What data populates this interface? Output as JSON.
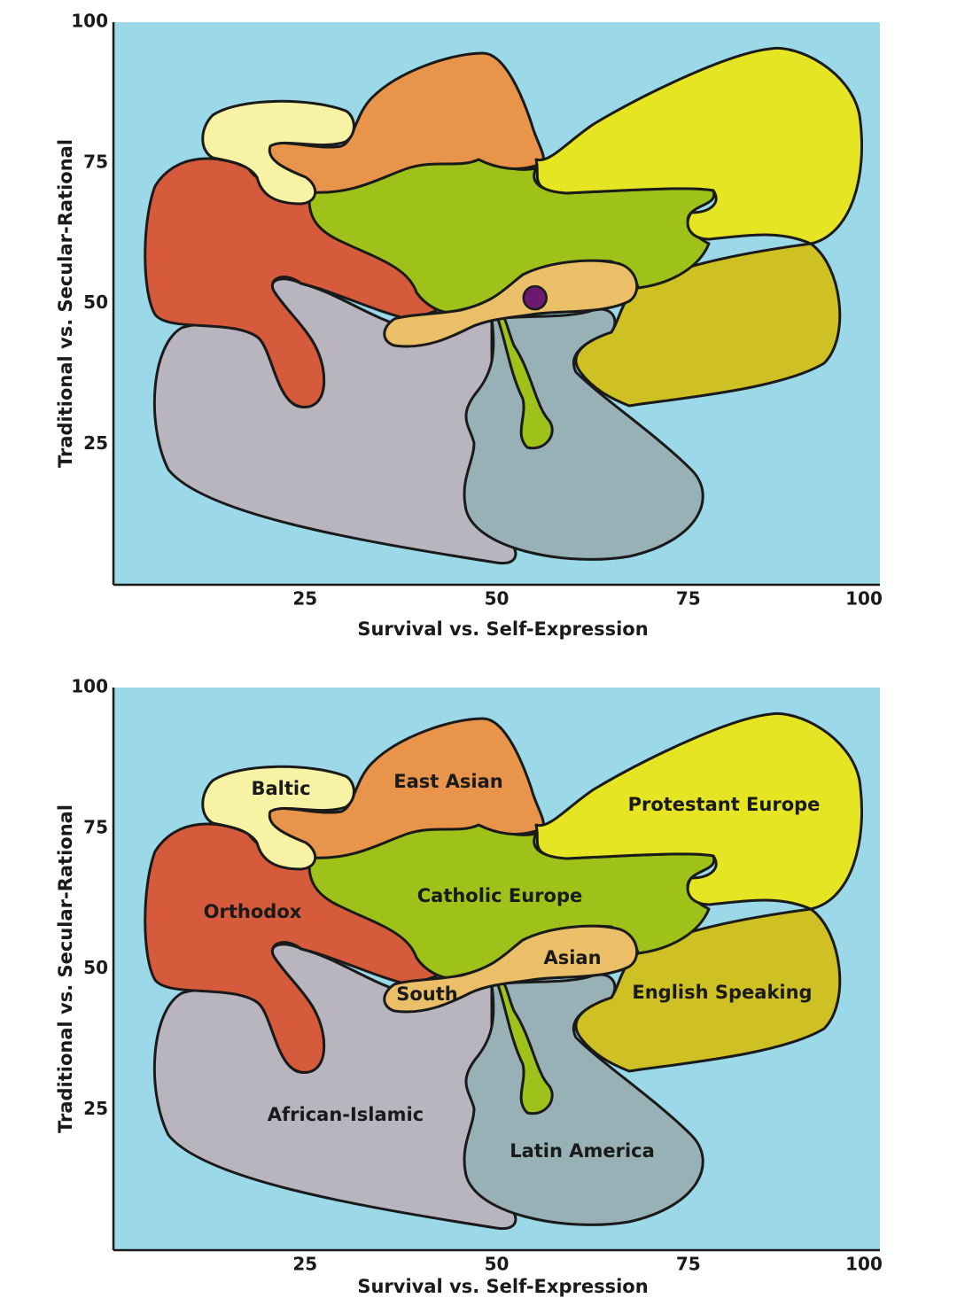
{
  "chart_data": [
    {
      "type": "scatter",
      "xlabel": "Survival vs. Self-Expression",
      "ylabel": "Traditional vs. Secular-Rational",
      "xlim": [
        0,
        100
      ],
      "ylim": [
        0,
        100
      ],
      "xticks": [
        25,
        50,
        75,
        100
      ],
      "yticks": [
        25,
        50,
        75,
        100
      ],
      "background": "#9bd8e8",
      "region_colors": [
        "#b9b5bf",
        "#98b1b6",
        "#cfc023",
        "#d65b3c",
        "#9ec21a",
        "#e8944a",
        "#f8f2a4",
        "#e6e524",
        "#eabf68"
      ],
      "x": [
        55
      ],
      "y": [
        51
      ],
      "color": "#6b1a6e"
    },
    {
      "type": "region-map",
      "xlabel": "Survival vs. Self-Expression",
      "ylabel": "Traditional vs. Secular-Rational",
      "xlim": [
        0,
        100
      ],
      "ylim": [
        0,
        100
      ],
      "xticks": [
        25,
        50,
        75,
        100
      ],
      "yticks": [
        25,
        50,
        75,
        100
      ],
      "background": "#9bd8e8",
      "region_colors": [
        "#b9b5bf",
        "#98b1b6",
        "#cfc023",
        "#d65b3c",
        "#9ec21a",
        "#e8944a",
        "#f8f2a4",
        "#e6e524",
        "#eabf68"
      ],
      "labels": [
        "African-Islamic",
        "Latin America",
        "English Speaking",
        "Orthodox",
        "Catholic Europe",
        "East Asian",
        "Baltic",
        "Protestant Europe",
        "Asian",
        "South"
      ]
    }
  ]
}
